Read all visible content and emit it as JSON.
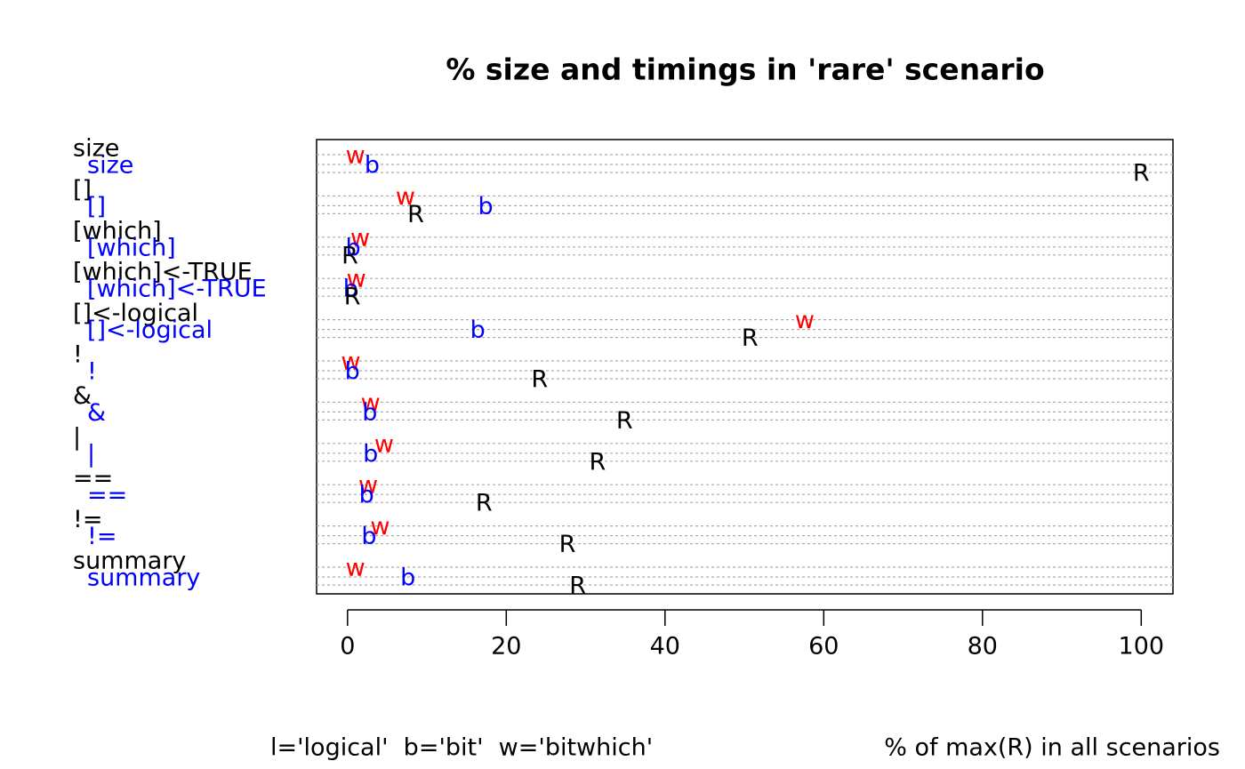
{
  "chart_data": {
    "type": "dotchart",
    "title": "% size and timings in 'rare' scenario",
    "xlabel": "% of max(R) in all scenarios",
    "annotation": "l='logical'  b='bit'  w='bitwhich'",
    "categories": [
      "size",
      "[]",
      "[which]",
      "[which]<-TRUE",
      "[]<-logical",
      "!",
      "&",
      "|",
      "==",
      "!=",
      "summary"
    ],
    "sublabels": [
      "size",
      "[]",
      "[which]",
      "[which]<-TRUE",
      "[]<-logical",
      "!",
      "&",
      "|",
      "==",
      "!=",
      "summary"
    ],
    "sublabel_color": "#0000ff",
    "series": [
      {
        "name": "w",
        "color": "#ff0000",
        "values": [
          1.0,
          7.3,
          1.6,
          1.1,
          57.6,
          0.4,
          2.9,
          4.6,
          2.6,
          4.1,
          1.0
        ]
      },
      {
        "name": "b",
        "color": "#0000ff",
        "values": [
          3.1,
          17.4,
          0.7,
          0.4,
          16.4,
          0.6,
          2.8,
          2.9,
          2.4,
          2.7,
          7.6
        ]
      },
      {
        "name": "R",
        "color": "#000000",
        "values": [
          100,
          8.6,
          0.3,
          0.6,
          50.7,
          24.2,
          34.9,
          31.5,
          17.2,
          27.7,
          29.0
        ]
      }
    ],
    "xlim": [
      -3.9,
      104.0
    ],
    "xticks": [
      0,
      20,
      40,
      60,
      80,
      100
    ]
  }
}
